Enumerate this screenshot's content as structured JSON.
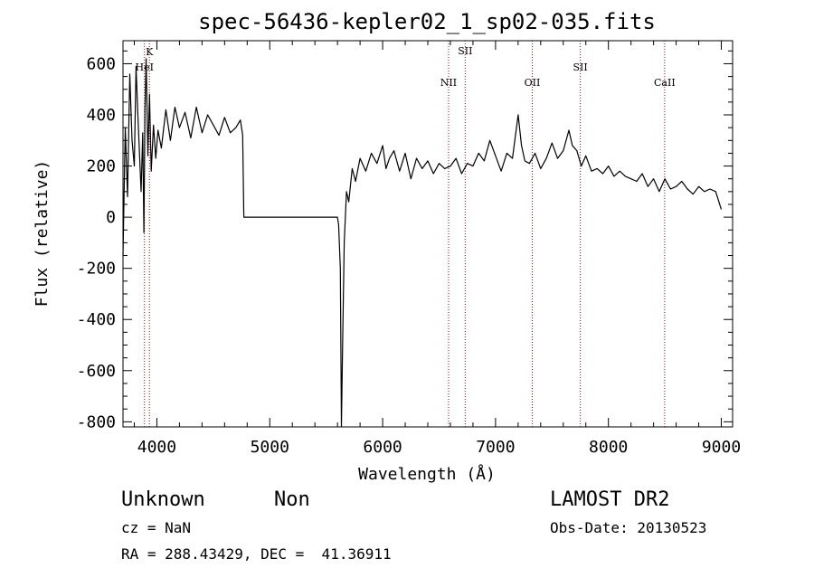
{
  "chart_data": {
    "type": "line",
    "title": "spec-56436-kepler02_1_sp02-035.fits",
    "xlabel": "Wavelength (Å)",
    "ylabel": "Flux (relative)",
    "xlim": [
      3700,
      9100
    ],
    "ylim": [
      -820,
      690
    ],
    "xticks": [
      4000,
      5000,
      6000,
      7000,
      8000,
      9000
    ],
    "yticks": [
      -800,
      -600,
      -400,
      -200,
      0,
      200,
      400,
      600
    ],
    "grid": false,
    "line_color": "#000000",
    "marker_color": "#aa0000",
    "spectral_lines": [
      {
        "name": "HeI",
        "wavelength": 3890
      },
      {
        "name": "K",
        "wavelength": 3934
      },
      {
        "name": "NII",
        "wavelength": 6584
      },
      {
        "name": "SII",
        "wavelength": 6731
      },
      {
        "name": "OII",
        "wavelength": 7325
      },
      {
        "name": "SII",
        "wavelength": 7751
      },
      {
        "name": "CaII",
        "wavelength": 8498
      }
    ],
    "series": [
      {
        "x": [
          3700,
          3720,
          3740,
          3760,
          3780,
          3800,
          3815,
          3830,
          3845,
          3860,
          3875,
          3885,
          3895,
          3905,
          3920,
          3935,
          3950,
          3970,
          3990,
          4010,
          4040,
          4080,
          4120,
          4160,
          4200,
          4250,
          4300,
          4350,
          4400,
          4450,
          4500,
          4550,
          4600,
          4650,
          4700,
          4740,
          4760,
          4770,
          4800,
          5000,
          5300,
          5600,
          5610,
          5625,
          5635,
          5645,
          5660,
          5680,
          5700,
          5730,
          5760,
          5800,
          5850,
          5900,
          5950,
          6000,
          6030,
          6060,
          6100,
          6150,
          6200,
          6250,
          6300,
          6350,
          6400,
          6450,
          6500,
          6550,
          6600,
          6650,
          6700,
          6750,
          6800,
          6850,
          6900,
          6950,
          7000,
          7050,
          7100,
          7150,
          7200,
          7230,
          7260,
          7300,
          7350,
          7400,
          7450,
          7500,
          7550,
          7600,
          7650,
          7680,
          7720,
          7760,
          7800,
          7850,
          7900,
          7950,
          8000,
          8050,
          8100,
          8150,
          8200,
          8250,
          8300,
          8350,
          8400,
          8450,
          8500,
          8550,
          8600,
          8650,
          8700,
          8750,
          8800,
          8850,
          8900,
          8950,
          9000
        ],
        "y": [
          -150,
          350,
          80,
          560,
          300,
          200,
          590,
          420,
          260,
          100,
          330,
          -60,
          420,
          620,
          240,
          480,
          180,
          360,
          230,
          340,
          270,
          420,
          300,
          430,
          350,
          410,
          310,
          430,
          330,
          400,
          360,
          320,
          390,
          330,
          350,
          380,
          320,
          0,
          0,
          0,
          0,
          0,
          -30,
          -200,
          -820,
          -500,
          -100,
          100,
          60,
          190,
          140,
          230,
          180,
          250,
          210,
          280,
          190,
          230,
          260,
          180,
          250,
          150,
          230,
          190,
          220,
          170,
          210,
          190,
          200,
          230,
          170,
          210,
          200,
          250,
          220,
          300,
          240,
          180,
          250,
          230,
          400,
          280,
          220,
          210,
          250,
          190,
          230,
          290,
          230,
          260,
          340,
          280,
          260,
          200,
          240,
          180,
          190,
          170,
          200,
          160,
          180,
          160,
          150,
          140,
          170,
          120,
          150,
          100,
          150,
          110,
          120,
          140,
          110,
          90,
          120,
          100,
          110,
          100,
          30
        ]
      }
    ]
  },
  "info": {
    "object_type": "Unknown",
    "subclass": "Non",
    "survey": "LAMOST DR2",
    "redshift": "cz = NaN",
    "obs_date": "Obs-Date: 20130523",
    "coords": "RA = 288.43429, DEC =  41.36911"
  }
}
